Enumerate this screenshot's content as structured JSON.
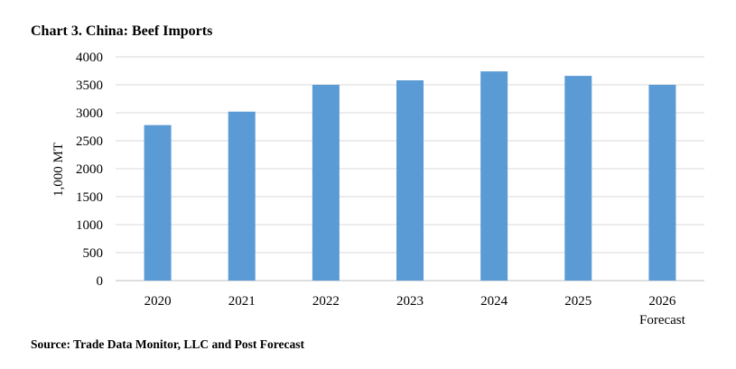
{
  "chart_data": {
    "type": "bar",
    "title": "Chart 3. China: Beef Imports",
    "ylabel": "1,000 MT",
    "xlabel": "",
    "categories": [
      "2020",
      "2021",
      "2022",
      "2023",
      "2024",
      "2025",
      "2026"
    ],
    "category_sublabels": [
      "",
      "",
      "",
      "",
      "",
      "",
      "Forecast"
    ],
    "values": [
      2780,
      3020,
      3500,
      3580,
      3740,
      3660,
      3500
    ],
    "ylim": [
      0,
      4000
    ],
    "yticks": [
      0,
      500,
      1000,
      1500,
      2000,
      2500,
      3000,
      3500,
      4000
    ],
    "grid": true,
    "legend": "none",
    "source": "Source: Trade Data Monitor, LLC and Post Forecast",
    "colors": {
      "bar": "#5b9bd5",
      "grid": "#d9d9d9",
      "axis": "#bfbfbf"
    }
  }
}
